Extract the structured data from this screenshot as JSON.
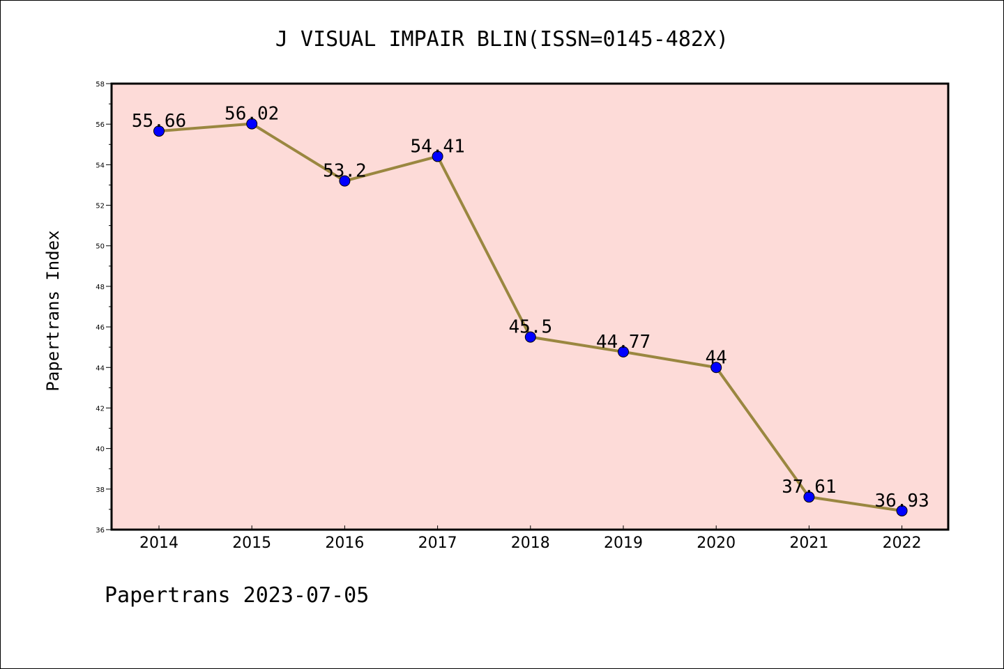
{
  "colors": {
    "plot_background": "#fddbd8",
    "line": "#9a8740",
    "marker": "#0000ff",
    "axes": "#000000"
  },
  "chart_data": {
    "type": "line",
    "title": "J VISUAL IMPAIR BLIN(ISSN=0145-482X)",
    "xlabel": "",
    "ylabel": "Papertrans Index",
    "categories": [
      "2014",
      "2015",
      "2016",
      "2017",
      "2018",
      "2019",
      "2020",
      "2021",
      "2022"
    ],
    "series": [
      {
        "values": [
          55.66,
          56.02,
          53.2,
          54.41,
          45.5,
          44.77,
          44,
          37.61,
          36.93
        ],
        "labels": [
          "55.66",
          "56.02",
          "53.2",
          "54.41",
          "45.5",
          "44.77",
          "44",
          "37.61",
          "36.93"
        ]
      }
    ],
    "ylim": [
      36,
      58
    ],
    "yticks": [
      "36",
      "38",
      "40",
      "42",
      "44",
      "46",
      "48",
      "50",
      "52",
      "54",
      "56",
      "58"
    ],
    "grid": false,
    "legend": "none"
  },
  "footer": "Papertrans 2023-07-05"
}
